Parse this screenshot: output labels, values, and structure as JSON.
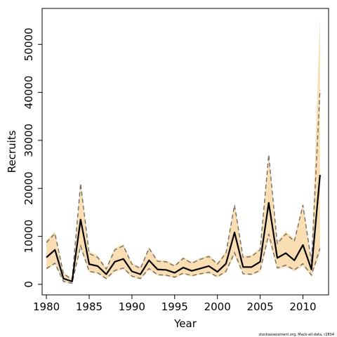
{
  "chart_data": {
    "type": "line",
    "xlabel": "Year",
    "ylabel": "Recruits",
    "xlim": [
      1979.5,
      2013
    ],
    "ylim": [
      -2200,
      57500
    ],
    "x_ticks": [
      1980,
      1985,
      1990,
      1995,
      2000,
      2005,
      2010
    ],
    "y_ticks": [
      0,
      10000,
      20000,
      30000,
      40000,
      50000
    ],
    "grid": false,
    "legend": "none",
    "colors": {
      "band": "#f8deb2",
      "median": "#000000",
      "bounds": "#6e6e6e"
    },
    "x": [
      1980,
      1981,
      1982,
      1983,
      1984,
      1985,
      1986,
      1987,
      1988,
      1989,
      1990,
      1991,
      1992,
      1993,
      1994,
      1995,
      1996,
      1997,
      1998,
      1999,
      2000,
      2001,
      2002,
      2003,
      2004,
      2005,
      2006,
      2007,
      2008,
      2009,
      2010,
      2011,
      2012
    ],
    "series": [
      {
        "role": "upper",
        "values": [
          8700,
          10600,
          2200,
          1000,
          21000,
          6400,
          5600,
          3200,
          7200,
          8000,
          4200,
          3300,
          7500,
          4800,
          4700,
          3800,
          5400,
          4400,
          5200,
          5800,
          4200,
          6500,
          16500,
          5600,
          5800,
          7200,
          27000,
          8500,
          10500,
          9000,
          16500,
          4600,
          40500
        ]
      },
      {
        "role": "median",
        "values": [
          5600,
          7200,
          1200,
          600,
          13500,
          4200,
          3800,
          2100,
          4700,
          5300,
          2700,
          2100,
          5000,
          3100,
          3000,
          2400,
          3500,
          2800,
          3300,
          3800,
          2600,
          4300,
          10800,
          3600,
          3600,
          4700,
          17000,
          5500,
          6500,
          5000,
          8200,
          3100,
          22800
        ]
      },
      {
        "role": "lower",
        "values": [
          3300,
          4400,
          600,
          200,
          8000,
          2700,
          2400,
          1200,
          2900,
          3400,
          1700,
          1200,
          3300,
          2000,
          1900,
          1500,
          2300,
          1800,
          2200,
          2500,
          1600,
          2700,
          6600,
          2200,
          2100,
          2900,
          10500,
          3400,
          4000,
          3000,
          4300,
          1900,
          7500
        ]
      },
      {
        "role": "band_upper",
        "values": [
          9200,
          11000,
          2500,
          1200,
          21500,
          6900,
          6000,
          3500,
          7600,
          8400,
          4500,
          3600,
          7800,
          5100,
          5000,
          4100,
          5700,
          4700,
          5500,
          6100,
          4500,
          6900,
          17000,
          5900,
          6100,
          7600,
          27500,
          9000,
          11000,
          9500,
          17000,
          5000,
          55800
        ]
      },
      {
        "role": "band_lower",
        "values": [
          3000,
          4100,
          500,
          100,
          7500,
          2500,
          2200,
          1000,
          2600,
          3100,
          1500,
          1000,
          3000,
          1800,
          1700,
          1300,
          2100,
          1600,
          2000,
          2300,
          1400,
          2400,
          6000,
          2000,
          1900,
          2600,
          9500,
          3100,
          3600,
          2700,
          3800,
          1700,
          6500
        ]
      }
    ]
  },
  "footer": {
    "caption": "stockassessment.org, Mack-all-data, r2834"
  }
}
